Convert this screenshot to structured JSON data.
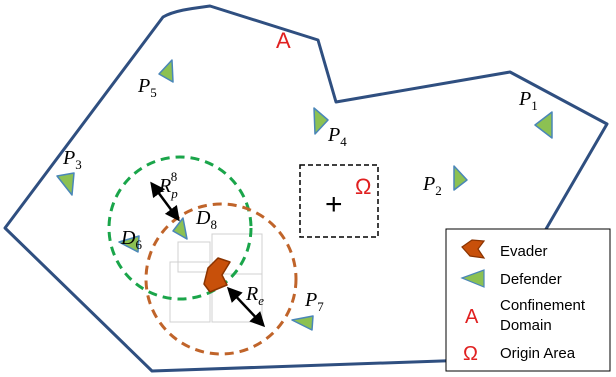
{
  "domain_label": "A",
  "origin_label": "Ω",
  "origin_marker": "+",
  "agents": {
    "p1": {
      "base": "P",
      "sub": "1"
    },
    "p2": {
      "base": "P",
      "sub": "2"
    },
    "p3": {
      "base": "P",
      "sub": "3"
    },
    "p4": {
      "base": "P",
      "sub": "4"
    },
    "p5": {
      "base": "P",
      "sub": "5"
    },
    "p7": {
      "base": "P",
      "sub": "7"
    },
    "d6": {
      "base": "D",
      "sub": "6"
    },
    "d8": {
      "base": "D",
      "sub": "8"
    }
  },
  "radii": {
    "rp": {
      "base": "R",
      "sub": "p",
      "sup": "8"
    },
    "re": {
      "base": "R",
      "sub": "e"
    }
  },
  "legend": {
    "evader": "Evader",
    "defender": "Defender",
    "domain_symbol": "A",
    "domain_line1": "Confinement",
    "domain_line2": "Domain",
    "origin_symbol": "Ω",
    "origin": "Origin Area"
  },
  "colors": {
    "boundary": "#2f4f80",
    "defender_fill": "#8cc152",
    "defender_stroke": "#4a86b8",
    "evader_fill": "#c8500a",
    "evader_stroke": "#8a3300",
    "capture_circle": "#1aa54a",
    "evader_circle": "#c0642a",
    "label_red": "#e02020"
  }
}
